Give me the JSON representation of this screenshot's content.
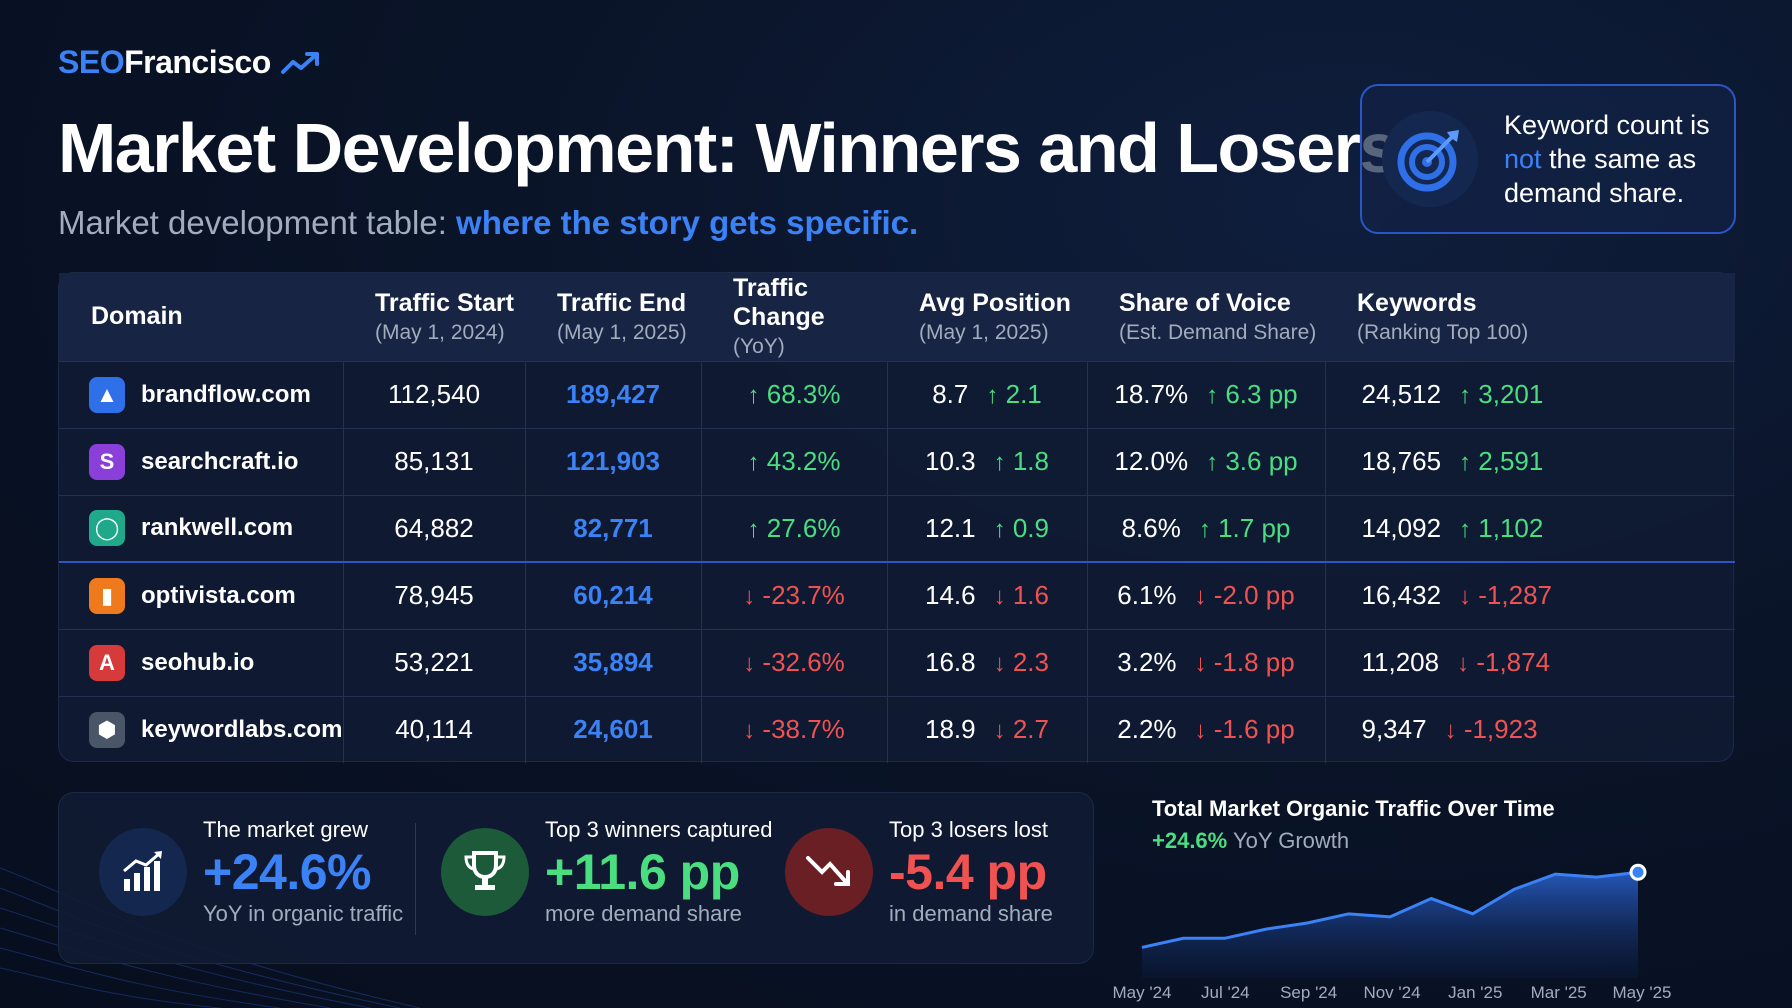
{
  "brand": {
    "prefix": "SEO",
    "name": "Francisco"
  },
  "title": "Market Development: Winners and Losers",
  "subtitle": {
    "lead": "Market development table: ",
    "highlight": "where the story gets specific."
  },
  "callout": {
    "line1": "Keyword count is",
    "not": "not",
    "line2": " the same as",
    "line3": "demand share."
  },
  "columns": [
    {
      "label": "Domain",
      "sub": ""
    },
    {
      "label": "Traffic Start",
      "sub": "(May 1, 2024)"
    },
    {
      "label": "Traffic End",
      "sub": "(May 1, 2025)"
    },
    {
      "label": "Traffic Change",
      "sub": "(YoY)"
    },
    {
      "label": "Avg Position",
      "sub": "(May 1, 2025)"
    },
    {
      "label": "Share of Voice",
      "sub": "(Est. Demand Share)"
    },
    {
      "label": "Keywords",
      "sub": "(Ranking Top 100)"
    }
  ],
  "rows": [
    {
      "domain": "brandflow.com",
      "logo": "mountain-icon",
      "logo_color": "#2f6fe8",
      "glyph": "▲",
      "start": "112,540",
      "end": "189,427",
      "change": "68.3%",
      "pos": "8.7",
      "pos_delta": "2.1",
      "sov": "18.7%",
      "sov_delta": "6.3 pp",
      "kw": "24,512",
      "kw_delta": "3,201",
      "dir": "up"
    },
    {
      "domain": "searchcraft.io",
      "logo": "s-letter-icon",
      "logo_color": "#8b3fd9",
      "glyph": "S",
      "start": "85,131",
      "end": "121,903",
      "change": "43.2%",
      "pos": "10.3",
      "pos_delta": "1.8",
      "sov": "12.0%",
      "sov_delta": "3.6 pp",
      "kw": "18,765",
      "kw_delta": "2,591",
      "dir": "up"
    },
    {
      "domain": "rankwell.com",
      "logo": "ring-icon",
      "logo_color": "#1fa98a",
      "glyph": "◯",
      "start": "64,882",
      "end": "82,771",
      "change": "27.6%",
      "pos": "12.1",
      "pos_delta": "0.9",
      "sov": "8.6%",
      "sov_delta": "1.7 pp",
      "kw": "14,092",
      "kw_delta": "1,102",
      "dir": "up"
    },
    {
      "domain": "optivista.com",
      "logo": "bars-icon",
      "logo_color": "#ee7a1d",
      "glyph": "▮",
      "start": "78,945",
      "end": "60,214",
      "change": "-23.7%",
      "pos": "14.6",
      "pos_delta": "1.6",
      "sov": "6.1%",
      "sov_delta": "-2.0 pp",
      "kw": "16,432",
      "kw_delta": "-1,287",
      "dir": "down"
    },
    {
      "domain": "seohub.io",
      "logo": "a-letter-icon",
      "logo_color": "#d63a3a",
      "glyph": "A",
      "start": "53,221",
      "end": "35,894",
      "change": "-32.6%",
      "pos": "16.8",
      "pos_delta": "2.3",
      "sov": "3.2%",
      "sov_delta": "-1.8 pp",
      "kw": "11,208",
      "kw_delta": "-1,874",
      "dir": "down"
    },
    {
      "domain": "keywordlabs.com",
      "logo": "hexagon-icon",
      "logo_color": "#4b5568",
      "glyph": "⬢",
      "start": "40,114",
      "end": "24,601",
      "change": "-38.7%",
      "pos": "18.9",
      "pos_delta": "2.7",
      "sov": "2.2%",
      "sov_delta": "-1.6 pp",
      "kw": "9,347",
      "kw_delta": "-1,923",
      "dir": "down"
    }
  ],
  "stats": [
    {
      "l1": "The market grew",
      "big": "+24.6%",
      "l3": "YoY in organic traffic",
      "color": "#3b82f6",
      "icon": "chart-up-icon"
    },
    {
      "l1": "Top 3 winners captured",
      "big": "+11.6 pp",
      "l3": "more demand share",
      "color": "#4ade80",
      "icon": "trophy-icon"
    },
    {
      "l1": "Top 3 losers lost",
      "big": "-5.4 pp",
      "l3": "in demand share",
      "color": "#f05252",
      "icon": "trend-down-icon"
    }
  ],
  "mini_chart": {
    "title": "Total Market Organic Traffic Over Time",
    "growth": "+24.6%",
    "growth_label": " YoY Growth",
    "x_labels": [
      "May '24",
      "Jul '24",
      "Sep '24",
      "Nov '24",
      "Jan '25",
      "Mar '25",
      "May '25"
    ]
  },
  "chart_data": {
    "type": "area",
    "title": "Total Market Organic Traffic Over Time",
    "x": [
      "May '24",
      "Jun '24",
      "Jul '24",
      "Aug '24",
      "Sep '24",
      "Oct '24",
      "Nov '24",
      "Dec '24",
      "Jan '25",
      "Feb '25",
      "Mar '25",
      "Apr '25",
      "May '25"
    ],
    "values": [
      100,
      103,
      103,
      106,
      108,
      111,
      110,
      116,
      111,
      119,
      124,
      123,
      124.6
    ]
  }
}
